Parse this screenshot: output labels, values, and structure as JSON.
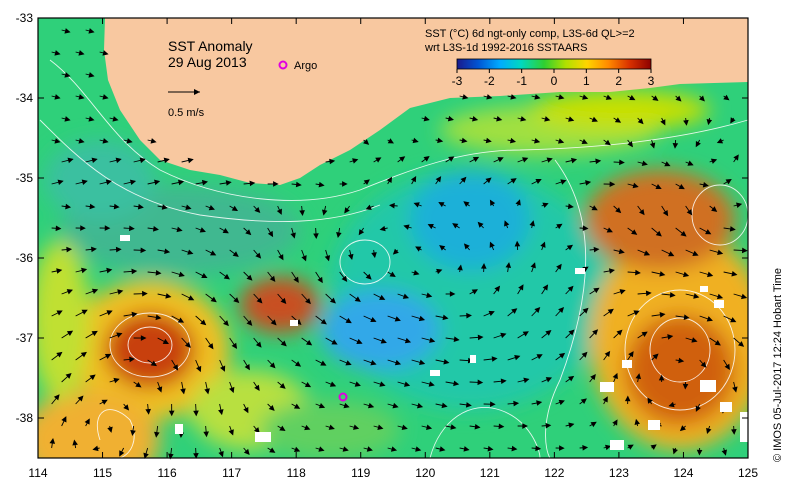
{
  "map": {
    "title_line1": "SST Anomaly",
    "title_line2": "29 Aug 2013",
    "scale_label": "0.5 m/s",
    "argo_label": "Argo",
    "colorbar_title_line1": "SST (°C) 6d ngt-only comp, L3S-6d QL>=2",
    "colorbar_title_line2": "wrt L3S-1d 1992-2016 SSTAARS",
    "colorbar_ticks": [
      "-3",
      "-2",
      "-1",
      "0",
      "1",
      "2",
      "3"
    ],
    "credit": "©  IMOS 05-Jul-2017 12:24 Hobart Time",
    "lat_ticks": [
      "-33",
      "-34",
      "-35",
      "-36",
      "-37",
      "-38"
    ],
    "lon_ticks": [
      "114",
      "115",
      "116",
      "117",
      "118",
      "119",
      "120",
      "121",
      "122",
      "123",
      "124",
      "125"
    ],
    "colors": {
      "land": "#f8c8a0",
      "frame": "#000000",
      "argo": "#e000e0",
      "colorbar": [
        "#1a1a8c",
        "#0055d4",
        "#00aaff",
        "#00d8a0",
        "#30d030",
        "#b0e000",
        "#ffd400",
        "#ff8a00",
        "#d83000",
        "#8c0000"
      ]
    }
  }
}
